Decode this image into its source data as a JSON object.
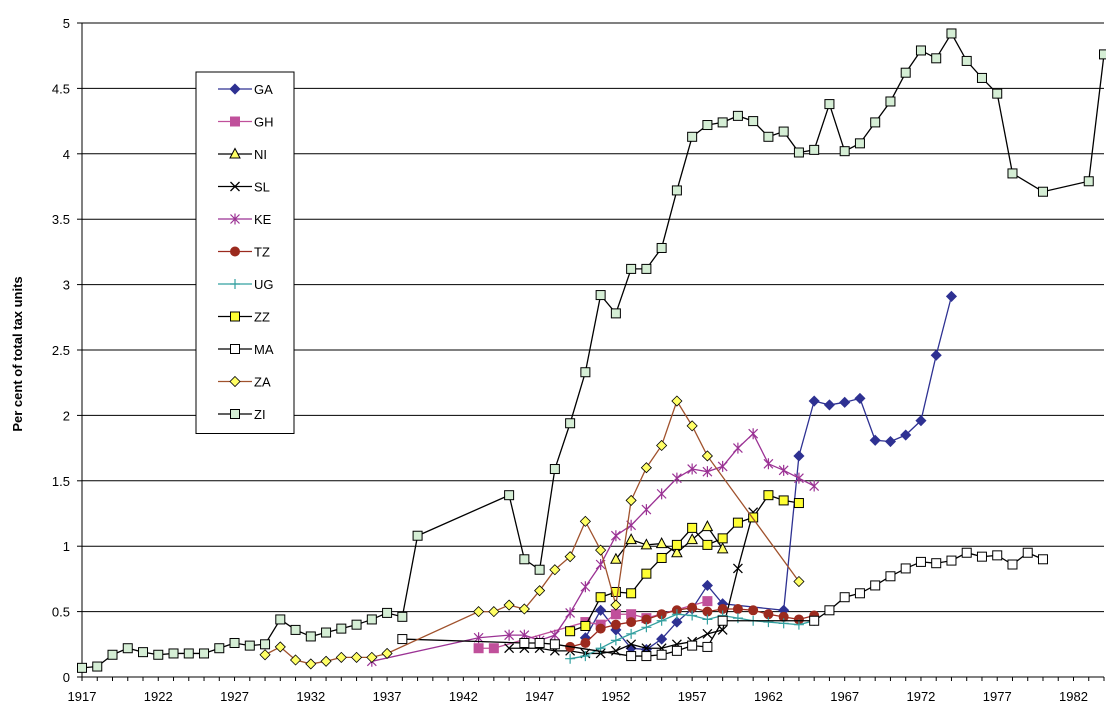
{
  "chart_data": {
    "type": "line",
    "title": "",
    "xlabel": "",
    "ylabel": "Per cent of total tax units",
    "xlim": [
      1917,
      1984
    ],
    "ylim": [
      0,
      5
    ],
    "xticks": [
      1917,
      1922,
      1927,
      1932,
      1937,
      1942,
      1947,
      1952,
      1957,
      1962,
      1967,
      1972,
      1977,
      1982
    ],
    "yticks": [
      0,
      0.5,
      1,
      1.5,
      2,
      2.5,
      3,
      3.5,
      4,
      4.5,
      5
    ],
    "ytick_labels": [
      "0",
      "0.5",
      "1",
      "1.5",
      "2",
      "2.5",
      "3",
      "3.5",
      "4",
      "4.5",
      "5"
    ],
    "grid": "horizontal",
    "legend_position": "top-left",
    "series": [
      {
        "name": "GA",
        "color": "#2e3192",
        "marker": "diamond",
        "fill": "#2e3192",
        "points": [
          [
            1950,
            0.3
          ],
          [
            1951,
            0.51
          ],
          [
            1952,
            0.36
          ],
          [
            1953,
            0.22
          ],
          [
            1954,
            0.21
          ],
          [
            1955,
            0.29
          ],
          [
            1956,
            0.42
          ],
          [
            1957,
            0.52
          ],
          [
            1958,
            0.7
          ],
          [
            1959,
            0.56
          ],
          [
            1963,
            0.51
          ],
          [
            1964,
            1.69
          ],
          [
            1965,
            2.11
          ],
          [
            1966,
            2.08
          ],
          [
            1967,
            2.1
          ],
          [
            1968,
            2.13
          ],
          [
            1969,
            1.81
          ],
          [
            1970,
            1.8
          ],
          [
            1971,
            1.85
          ],
          [
            1972,
            1.96
          ],
          [
            1973,
            2.46
          ],
          [
            1974,
            2.91
          ]
        ]
      },
      {
        "name": "GH",
        "color": "#c0509b",
        "marker": "square",
        "fill": "#c0509b",
        "points": [
          [
            1943,
            0.22
          ],
          [
            1944,
            0.22
          ],
          [
            1950,
            0.42
          ],
          [
            1951,
            0.4
          ],
          [
            1952,
            0.48
          ],
          [
            1953,
            0.48
          ],
          [
            1954,
            0.45
          ],
          [
            1958,
            0.58
          ]
        ]
      },
      {
        "name": "NI",
        "color": "#000000",
        "marker": "triangle",
        "fill": "#ffff66",
        "points": [
          [
            1952,
            0.9
          ],
          [
            1953,
            1.05
          ],
          [
            1954,
            1.01
          ],
          [
            1955,
            1.02
          ],
          [
            1956,
            0.95
          ],
          [
            1957,
            1.05
          ],
          [
            1958,
            1.15
          ],
          [
            1959,
            0.98
          ]
        ]
      },
      {
        "name": "SL",
        "color": "#000000",
        "marker": "x",
        "fill": "none",
        "points": [
          [
            1945,
            0.22
          ],
          [
            1946,
            0.22
          ],
          [
            1947,
            0.22
          ],
          [
            1948,
            0.2
          ],
          [
            1949,
            0.2
          ],
          [
            1950,
            0.18
          ],
          [
            1951,
            0.18
          ],
          [
            1952,
            0.2
          ],
          [
            1953,
            0.25
          ],
          [
            1954,
            0.22
          ],
          [
            1955,
            0.22
          ],
          [
            1956,
            0.25
          ],
          [
            1957,
            0.27
          ],
          [
            1958,
            0.33
          ],
          [
            1959,
            0.36
          ],
          [
            1960,
            0.83
          ],
          [
            1961,
            1.26
          ]
        ]
      },
      {
        "name": "KE",
        "color": "#9b3294",
        "marker": "star",
        "fill": "none",
        "points": [
          [
            1936,
            0.12
          ],
          [
            1943,
            0.3
          ],
          [
            1945,
            0.32
          ],
          [
            1946,
            0.32
          ],
          [
            1947,
            0.28
          ],
          [
            1948,
            0.32
          ],
          [
            1949,
            0.49
          ],
          [
            1950,
            0.69
          ],
          [
            1951,
            0.86
          ],
          [
            1952,
            1.08
          ],
          [
            1953,
            1.16
          ],
          [
            1954,
            1.28
          ],
          [
            1955,
            1.4
          ],
          [
            1956,
            1.52
          ],
          [
            1957,
            1.59
          ],
          [
            1958,
            1.57
          ],
          [
            1959,
            1.61
          ],
          [
            1960,
            1.75
          ],
          [
            1961,
            1.86
          ],
          [
            1962,
            1.63
          ],
          [
            1963,
            1.58
          ],
          [
            1964,
            1.52
          ],
          [
            1965,
            1.46
          ]
        ]
      },
      {
        "name": "TZ",
        "color": "#9b2a1e",
        "marker": "circle",
        "fill": "#9b2a1e",
        "points": [
          [
            1949,
            0.23
          ],
          [
            1950,
            0.26
          ],
          [
            1951,
            0.37
          ],
          [
            1952,
            0.4
          ],
          [
            1953,
            0.42
          ],
          [
            1954,
            0.44
          ],
          [
            1955,
            0.48
          ],
          [
            1956,
            0.51
          ],
          [
            1957,
            0.53
          ],
          [
            1958,
            0.5
          ],
          [
            1959,
            0.52
          ],
          [
            1960,
            0.52
          ],
          [
            1961,
            0.51
          ],
          [
            1962,
            0.48
          ],
          [
            1963,
            0.46
          ],
          [
            1964,
            0.44
          ],
          [
            1965,
            0.47
          ]
        ]
      },
      {
        "name": "UG",
        "color": "#33a0a0",
        "marker": "plus",
        "fill": "none",
        "points": [
          [
            1949,
            0.14
          ],
          [
            1950,
            0.16
          ],
          [
            1951,
            0.22
          ],
          [
            1952,
            0.28
          ],
          [
            1953,
            0.33
          ],
          [
            1954,
            0.38
          ],
          [
            1955,
            0.43
          ],
          [
            1956,
            0.48
          ],
          [
            1957,
            0.47
          ],
          [
            1958,
            0.44
          ],
          [
            1959,
            0.47
          ],
          [
            1960,
            0.45
          ],
          [
            1961,
            0.43
          ],
          [
            1962,
            0.42
          ],
          [
            1963,
            0.41
          ],
          [
            1964,
            0.4
          ],
          [
            1965,
            0.43
          ]
        ]
      },
      {
        "name": "ZZ",
        "color": "#000000",
        "marker": "square",
        "fill": "#ffff33",
        "points": [
          [
            1949,
            0.35
          ],
          [
            1950,
            0.39
          ],
          [
            1951,
            0.61
          ],
          [
            1952,
            0.65
          ],
          [
            1953,
            0.64
          ],
          [
            1954,
            0.79
          ],
          [
            1955,
            0.91
          ],
          [
            1956,
            1.01
          ],
          [
            1957,
            1.14
          ],
          [
            1958,
            1.01
          ],
          [
            1959,
            1.06
          ],
          [
            1960,
            1.18
          ],
          [
            1961,
            1.22
          ],
          [
            1962,
            1.39
          ],
          [
            1963,
            1.35
          ],
          [
            1964,
            1.33
          ]
        ]
      },
      {
        "name": "MA",
        "color": "#000000",
        "marker": "square",
        "fill": "#ffffff",
        "points": [
          [
            1938,
            0.29
          ],
          [
            1946,
            0.26
          ],
          [
            1947,
            0.26
          ],
          [
            1948,
            0.25
          ],
          [
            1953,
            0.16
          ],
          [
            1954,
            0.16
          ],
          [
            1955,
            0.17
          ],
          [
            1956,
            0.2
          ],
          [
            1957,
            0.24
          ],
          [
            1958,
            0.23
          ],
          [
            1959,
            0.43
          ],
          [
            1965,
            0.43
          ],
          [
            1966,
            0.51
          ],
          [
            1967,
            0.61
          ],
          [
            1968,
            0.64
          ],
          [
            1969,
            0.7
          ],
          [
            1970,
            0.77
          ],
          [
            1971,
            0.83
          ],
          [
            1972,
            0.88
          ],
          [
            1973,
            0.87
          ],
          [
            1974,
            0.89
          ],
          [
            1975,
            0.95
          ],
          [
            1976,
            0.92
          ],
          [
            1977,
            0.93
          ],
          [
            1978,
            0.86
          ],
          [
            1979,
            0.95
          ],
          [
            1980,
            0.9
          ]
        ]
      },
      {
        "name": "ZA",
        "color": "#a0522d",
        "marker": "diamond",
        "fill": "#ffff66",
        "points": [
          [
            1929,
            0.17
          ],
          [
            1930,
            0.23
          ],
          [
            1931,
            0.13
          ],
          [
            1932,
            0.1
          ],
          [
            1933,
            0.12
          ],
          [
            1934,
            0.15
          ],
          [
            1935,
            0.15
          ],
          [
            1936,
            0.15
          ],
          [
            1937,
            0.18
          ],
          [
            1943,
            0.5
          ],
          [
            1944,
            0.5
          ],
          [
            1945,
            0.55
          ],
          [
            1946,
            0.52
          ],
          [
            1947,
            0.66
          ],
          [
            1948,
            0.82
          ],
          [
            1949,
            0.92
          ],
          [
            1950,
            1.19
          ],
          [
            1951,
            0.97
          ],
          [
            1952,
            0.55
          ],
          [
            1953,
            1.35
          ],
          [
            1954,
            1.6
          ],
          [
            1955,
            1.77
          ],
          [
            1956,
            2.11
          ],
          [
            1957,
            1.92
          ],
          [
            1958,
            1.69
          ],
          [
            1964,
            0.73
          ]
        ]
      },
      {
        "name": "ZI",
        "color": "#000000",
        "marker": "square",
        "fill": "#d5eed5",
        "points": [
          [
            1917,
            0.07
          ],
          [
            1918,
            0.08
          ],
          [
            1919,
            0.17
          ],
          [
            1920,
            0.22
          ],
          [
            1921,
            0.19
          ],
          [
            1922,
            0.17
          ],
          [
            1923,
            0.18
          ],
          [
            1924,
            0.18
          ],
          [
            1925,
            0.18
          ],
          [
            1926,
            0.22
          ],
          [
            1927,
            0.26
          ],
          [
            1928,
            0.24
          ],
          [
            1929,
            0.25
          ],
          [
            1930,
            0.44
          ],
          [
            1931,
            0.36
          ],
          [
            1932,
            0.31
          ],
          [
            1933,
            0.34
          ],
          [
            1934,
            0.37
          ],
          [
            1935,
            0.4
          ],
          [
            1936,
            0.44
          ],
          [
            1937,
            0.49
          ],
          [
            1938,
            0.46
          ],
          [
            1939,
            1.08
          ],
          [
            1945,
            1.39
          ],
          [
            1946,
            0.9
          ],
          [
            1947,
            0.82
          ],
          [
            1948,
            1.59
          ],
          [
            1949,
            1.94
          ],
          [
            1950,
            2.33
          ],
          [
            1951,
            2.92
          ],
          [
            1952,
            2.78
          ],
          [
            1953,
            3.12
          ],
          [
            1954,
            3.12
          ],
          [
            1955,
            3.28
          ],
          [
            1956,
            3.72
          ],
          [
            1957,
            4.13
          ],
          [
            1958,
            4.22
          ],
          [
            1959,
            4.24
          ],
          [
            1960,
            4.29
          ],
          [
            1961,
            4.25
          ],
          [
            1962,
            4.13
          ],
          [
            1963,
            4.17
          ],
          [
            1964,
            4.01
          ],
          [
            1965,
            4.03
          ],
          [
            1966,
            4.38
          ],
          [
            1967,
            4.02
          ],
          [
            1968,
            4.08
          ],
          [
            1969,
            4.24
          ],
          [
            1970,
            4.4
          ],
          [
            1971,
            4.62
          ],
          [
            1972,
            4.79
          ],
          [
            1973,
            4.73
          ],
          [
            1974,
            4.92
          ],
          [
            1975,
            4.71
          ],
          [
            1976,
            4.58
          ],
          [
            1977,
            4.46
          ],
          [
            1978,
            3.85
          ],
          [
            1980,
            3.71
          ],
          [
            1983,
            3.79
          ],
          [
            1984,
            4.76
          ]
        ]
      }
    ]
  }
}
